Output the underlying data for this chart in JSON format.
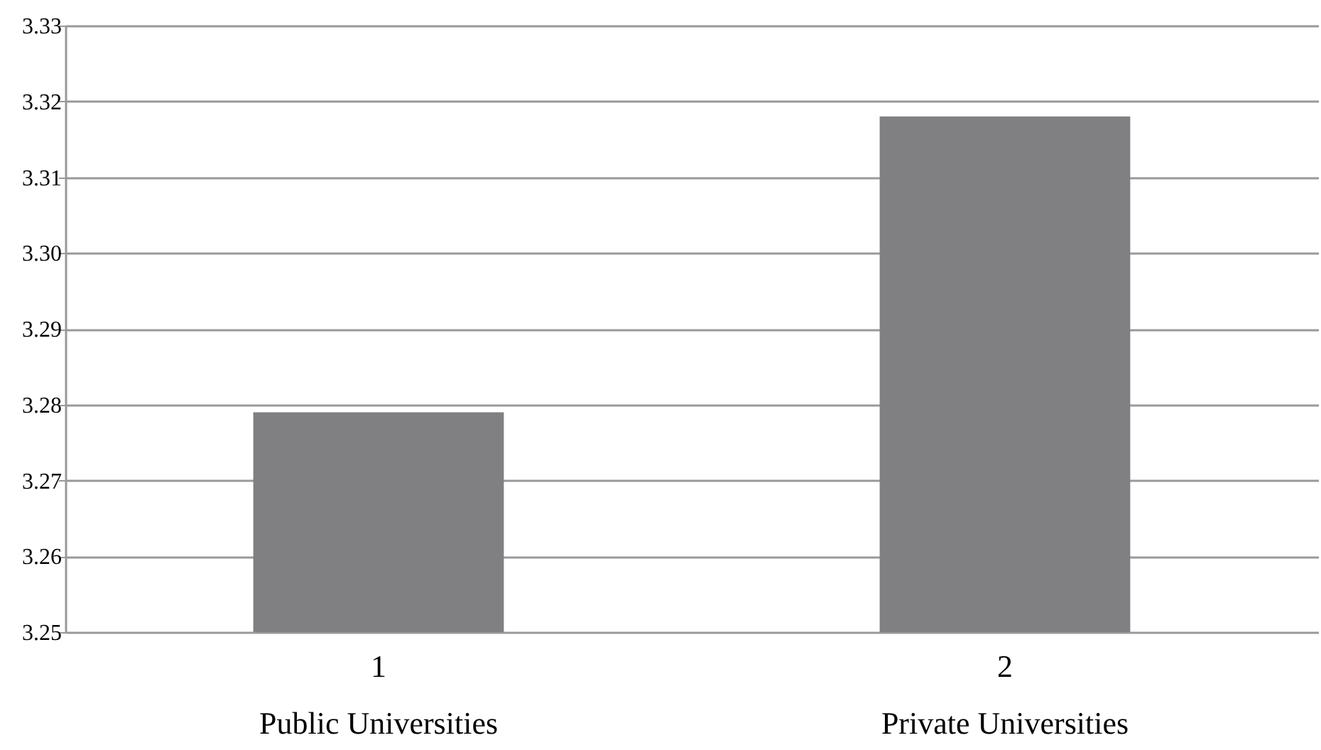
{
  "chart_data": {
    "type": "bar",
    "categories": [
      "1\nPublic Universities",
      "2\nPrivate Universities"
    ],
    "series": [
      {
        "color": "#808083",
        "values": [
          3.279,
          3.318
        ]
      }
    ],
    "ylim": [
      3.25,
      3.33
    ],
    "yticks": [
      3.25,
      3.26,
      3.27,
      3.28,
      3.29,
      {
        "value": 3.3,
        "label": "3.30"
      },
      3.31,
      3.32,
      3.33
    ],
    "grid": "y"
  }
}
